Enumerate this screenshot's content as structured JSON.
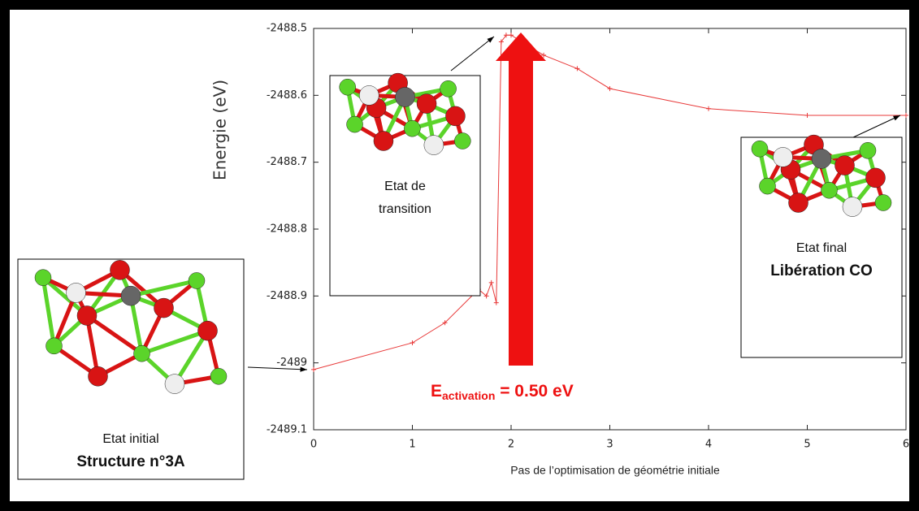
{
  "chart_data": {
    "type": "line",
    "x_label": "Pas de l’optimisation de géométrie initiale",
    "y_label": "Energie (eV)",
    "x": [
      0,
      1,
      1.33,
      1.67,
      1.75,
      1.8,
      1.85,
      1.9,
      1.95,
      2,
      2.33,
      2.67,
      3,
      4,
      5,
      6
    ],
    "series": [
      {
        "color": "#e83a3a",
        "values": [
          -2489.01,
          -2488.97,
          -2488.94,
          -2488.89,
          -2488.9,
          -2488.88,
          -2488.91,
          -2488.52,
          -2488.51,
          -2488.51,
          -2488.54,
          -2488.56,
          -2488.59,
          -2488.62,
          -2488.63,
          -2488.63
        ]
      }
    ],
    "xlim": [
      0,
      6
    ],
    "xticks": [
      0,
      1,
      2,
      3,
      4,
      5,
      6
    ],
    "ylim": [
      -2489.1,
      -2488.5
    ],
    "yticks": [
      -2488.5,
      -2488.6,
      -2488.7,
      -2488.8,
      -2488.9,
      -2489,
      -2489.1
    ],
    "annotation": {
      "symbol": "E",
      "subscript": "activation",
      "text": " = 0.50 eV",
      "color": "#ee1111"
    },
    "insets": [
      {
        "lines": [
          "Etat initial",
          "Structure n°3A"
        ],
        "bold_last": true
      },
      {
        "lines": [
          "Etat de",
          "transition"
        ],
        "bold_last": false
      },
      {
        "lines": [
          "Etat final",
          "Libération CO"
        ],
        "bold_last": true
      }
    ]
  }
}
